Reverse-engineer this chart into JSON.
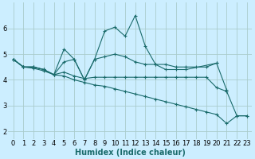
{
  "xlabel": "Humidex (Indice chaleur)",
  "bg_color": "#cceeff",
  "grid_color": "#aacccc",
  "line_color": "#1a6b6b",
  "xlim": [
    -0.5,
    23.5
  ],
  "ylim": [
    1.7,
    7.0
  ],
  "lines": [
    {
      "x": [
        0,
        1,
        2,
        3,
        4,
        5,
        6,
        7,
        8,
        9,
        10,
        11,
        12,
        13,
        14,
        15,
        16,
        17,
        20,
        21
      ],
      "y": [
        4.8,
        4.5,
        4.5,
        4.4,
        4.2,
        5.2,
        4.8,
        4.0,
        4.8,
        5.9,
        6.05,
        5.7,
        6.5,
        5.3,
        4.6,
        4.4,
        4.4,
        4.4,
        4.65,
        3.6
      ]
    },
    {
      "x": [
        0,
        1,
        2,
        3,
        4,
        5,
        6,
        7,
        8,
        9,
        10,
        11,
        12,
        13,
        14,
        15,
        16,
        17,
        18,
        19,
        20
      ],
      "y": [
        4.8,
        4.5,
        4.5,
        4.4,
        4.2,
        4.7,
        4.8,
        4.0,
        4.8,
        4.9,
        5.0,
        4.9,
        4.7,
        4.6,
        4.6,
        4.6,
        4.5,
        4.5,
        4.5,
        4.5,
        4.65
      ]
    },
    {
      "x": [
        0,
        1,
        2,
        3,
        4,
        5,
        6,
        7,
        8,
        9,
        10,
        11,
        12,
        13,
        14,
        15,
        16,
        17,
        18,
        19,
        20,
        21,
        22,
        23
      ],
      "y": [
        4.8,
        4.5,
        4.5,
        4.4,
        4.2,
        4.3,
        4.15,
        4.05,
        4.1,
        4.1,
        4.1,
        4.1,
        4.1,
        4.1,
        4.1,
        4.1,
        4.1,
        4.1,
        4.1,
        4.1,
        3.7,
        3.55,
        2.6,
        2.6
      ]
    },
    {
      "x": [
        0,
        1,
        2,
        3,
        4,
        5,
        6,
        7,
        8,
        9,
        10,
        11,
        12,
        13,
        14,
        15,
        16,
        17,
        18,
        19,
        20,
        21,
        22,
        23
      ],
      "y": [
        4.8,
        4.5,
        4.45,
        4.35,
        4.2,
        4.15,
        4.0,
        3.9,
        3.8,
        3.75,
        3.65,
        3.55,
        3.45,
        3.35,
        3.25,
        3.15,
        3.05,
        2.95,
        2.85,
        2.75,
        2.65,
        2.3,
        2.6,
        2.6
      ]
    }
  ],
  "xticks": [
    0,
    1,
    2,
    3,
    4,
    5,
    6,
    7,
    8,
    9,
    10,
    11,
    12,
    13,
    14,
    15,
    16,
    17,
    18,
    19,
    20,
    21,
    22,
    23
  ],
  "yticks": [
    2,
    3,
    4,
    5,
    6
  ],
  "xlabel_fontsize": 7,
  "tick_fontsize": 6
}
